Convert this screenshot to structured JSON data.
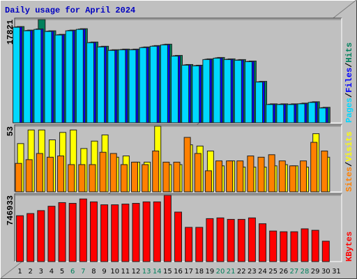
{
  "chart_data": [
    {
      "type": "bar",
      "title": "Daily usage for April 2024",
      "title_color": "#0000c0",
      "ylim": [
        0,
        17821
      ],
      "yticks": [
        17821
      ],
      "label_separator": "/",
      "series": [
        {
          "name": "Pages",
          "color": "#00d8ff",
          "values": [
            16487,
            15880,
            16120,
            15760,
            15150,
            15880,
            16120,
            13820,
            13090,
            12490,
            12600,
            12600,
            12970,
            13210,
            13450,
            11510,
            9940,
            9820,
            10910,
            11150,
            10910,
            10790,
            10540,
            7030,
            3150,
            3150,
            3150,
            3270,
            3510,
            2550,
            null
          ]
        },
        {
          "name": "Files",
          "color": "#0000ff",
          "values": [
            16550,
            15940,
            16200,
            15820,
            15210,
            15940,
            16180,
            13880,
            13150,
            12550,
            12660,
            12660,
            13030,
            13270,
            13510,
            11570,
            10000,
            9880,
            10970,
            11210,
            10970,
            10850,
            10600,
            7090,
            3210,
            3210,
            3210,
            3330,
            3570,
            2610,
            null
          ]
        },
        {
          "name": "Hits",
          "color": "#00805c",
          "values": [
            16610,
            16000,
            17821,
            15880,
            15270,
            16000,
            16240,
            13940,
            13210,
            12610,
            12720,
            12720,
            13090,
            13330,
            13570,
            11630,
            10060,
            9940,
            11030,
            11270,
            11030,
            10910,
            10660,
            7150,
            3270,
            3270,
            3270,
            3390,
            3630,
            2670,
            null
          ]
        }
      ]
    },
    {
      "type": "bar",
      "ylim": [
        0,
        53
      ],
      "yticks": [
        53
      ],
      "label_separator": "/",
      "series": [
        {
          "name": "Sites",
          "color": "#ff8000",
          "values": [
            23,
            26,
            31,
            28,
            29,
            22,
            22,
            22,
            32,
            31,
            22,
            24,
            22,
            33,
            24,
            24,
            44,
            31,
            17,
            25,
            25,
            25,
            29,
            28,
            30,
            25,
            21,
            25,
            40,
            33,
            null
          ]
        },
        {
          "name": "Visits",
          "color": "#ffff00",
          "values": [
            39,
            50,
            50,
            42,
            48,
            50,
            35,
            41,
            46,
            28,
            29,
            24,
            24,
            53,
            22,
            22,
            38,
            37,
            33,
            21,
            25,
            20,
            20,
            20,
            21,
            22,
            21,
            20,
            47,
            28,
            null
          ]
        }
      ]
    },
    {
      "type": "bar",
      "ylim": [
        0,
        746933
      ],
      "yticks": [
        746933
      ],
      "series": [
        {
          "name": "KBytes",
          "color": "#ff0000",
          "values": [
            517100,
            541700,
            574600,
            623800,
            664800,
            656600,
            705900,
            673100,
            640200,
            640200,
            648400,
            656600,
            673100,
            673100,
            746933,
            558100,
            385800,
            385800,
            484300,
            492500,
            476100,
            476100,
            492500,
            426800,
            344700,
            336500,
            336500,
            369400,
            352900,
            229800,
            null
          ]
        }
      ],
      "categories": [
        "1",
        "2",
        "3",
        "4",
        "5",
        "6",
        "7",
        "8",
        "9",
        "10",
        "11",
        "12",
        "13",
        "14",
        "15",
        "16",
        "17",
        "18",
        "19",
        "20",
        "21",
        "22",
        "23",
        "24",
        "25",
        "26",
        "27",
        "28",
        "29",
        "30",
        "31"
      ],
      "category_colors": [
        "#000000",
        "#000000",
        "#000000",
        "#000000",
        "#000000",
        "#00805c",
        "#00805c",
        "#000000",
        "#000000",
        "#000000",
        "#000000",
        "#000000",
        "#00805c",
        "#00805c",
        "#000000",
        "#000000",
        "#000000",
        "#000000",
        "#000000",
        "#00805c",
        "#00805c",
        "#000000",
        "#000000",
        "#000000",
        "#000000",
        "#000000",
        "#00805c",
        "#00805c",
        "#000000",
        "#000000",
        "#000000"
      ]
    }
  ]
}
